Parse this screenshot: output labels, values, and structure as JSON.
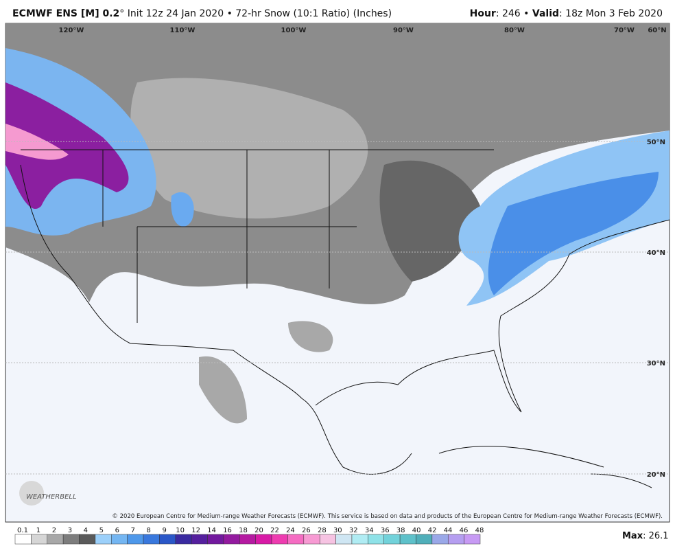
{
  "header": {
    "model": "ECMWF ENS [M] 0.2",
    "description": "° Init 12z 24 Jan 2020 • 72-hr Snow (10:1 Ratio) (Inches)",
    "hour_label": "Hour",
    "hour_value": ": 246 • ",
    "valid_label": "Valid",
    "valid_value": ": 18z Mon 3 Feb 2020"
  },
  "map": {
    "longitudes": [
      "120°W",
      "110°W",
      "100°W",
      "90°W",
      "80°W",
      "70°W",
      "60°N"
    ],
    "latitudes": [
      "50°N",
      "40°N",
      "30°N",
      "20°N"
    ],
    "logo": "WEATHERBELL",
    "copyright": "© 2020 European Centre for Medium-range Weather Forecasts (ECMWF). This service is based on data and products of the European Centre for Medium-range Weather Forecasts (ECMWF)."
  },
  "colorbar": {
    "ticks": [
      "0.1",
      "1",
      "2",
      "3",
      "4",
      "5",
      "6",
      "7",
      "8",
      "9",
      "10",
      "12",
      "14",
      "16",
      "18",
      "20",
      "22",
      "24",
      "26",
      "28",
      "30",
      "32",
      "34",
      "36",
      "38",
      "40",
      "42",
      "44",
      "46",
      "48"
    ],
    "colors": [
      "#ffffff",
      "#d6d6d6",
      "#a8a8a8",
      "#7d7d7d",
      "#5a5a5a",
      "#9cd0fa",
      "#74b6f2",
      "#4e98ea",
      "#3978dd",
      "#2a57c8",
      "#3a2aa0",
      "#55209e",
      "#72199e",
      "#931a9f",
      "#b51aa1",
      "#d81aa6",
      "#ee3cb0",
      "#f56cc2",
      "#f79ad3",
      "#f6c3e2",
      "#cfe6f3",
      "#b0ecf3",
      "#8fe2e8",
      "#72d2da",
      "#5ec1ca",
      "#50afba",
      "#9aa8e8",
      "#b59ef0",
      "#c79af4"
    ],
    "max_label": "Max",
    "max_value": ": 26.1"
  }
}
